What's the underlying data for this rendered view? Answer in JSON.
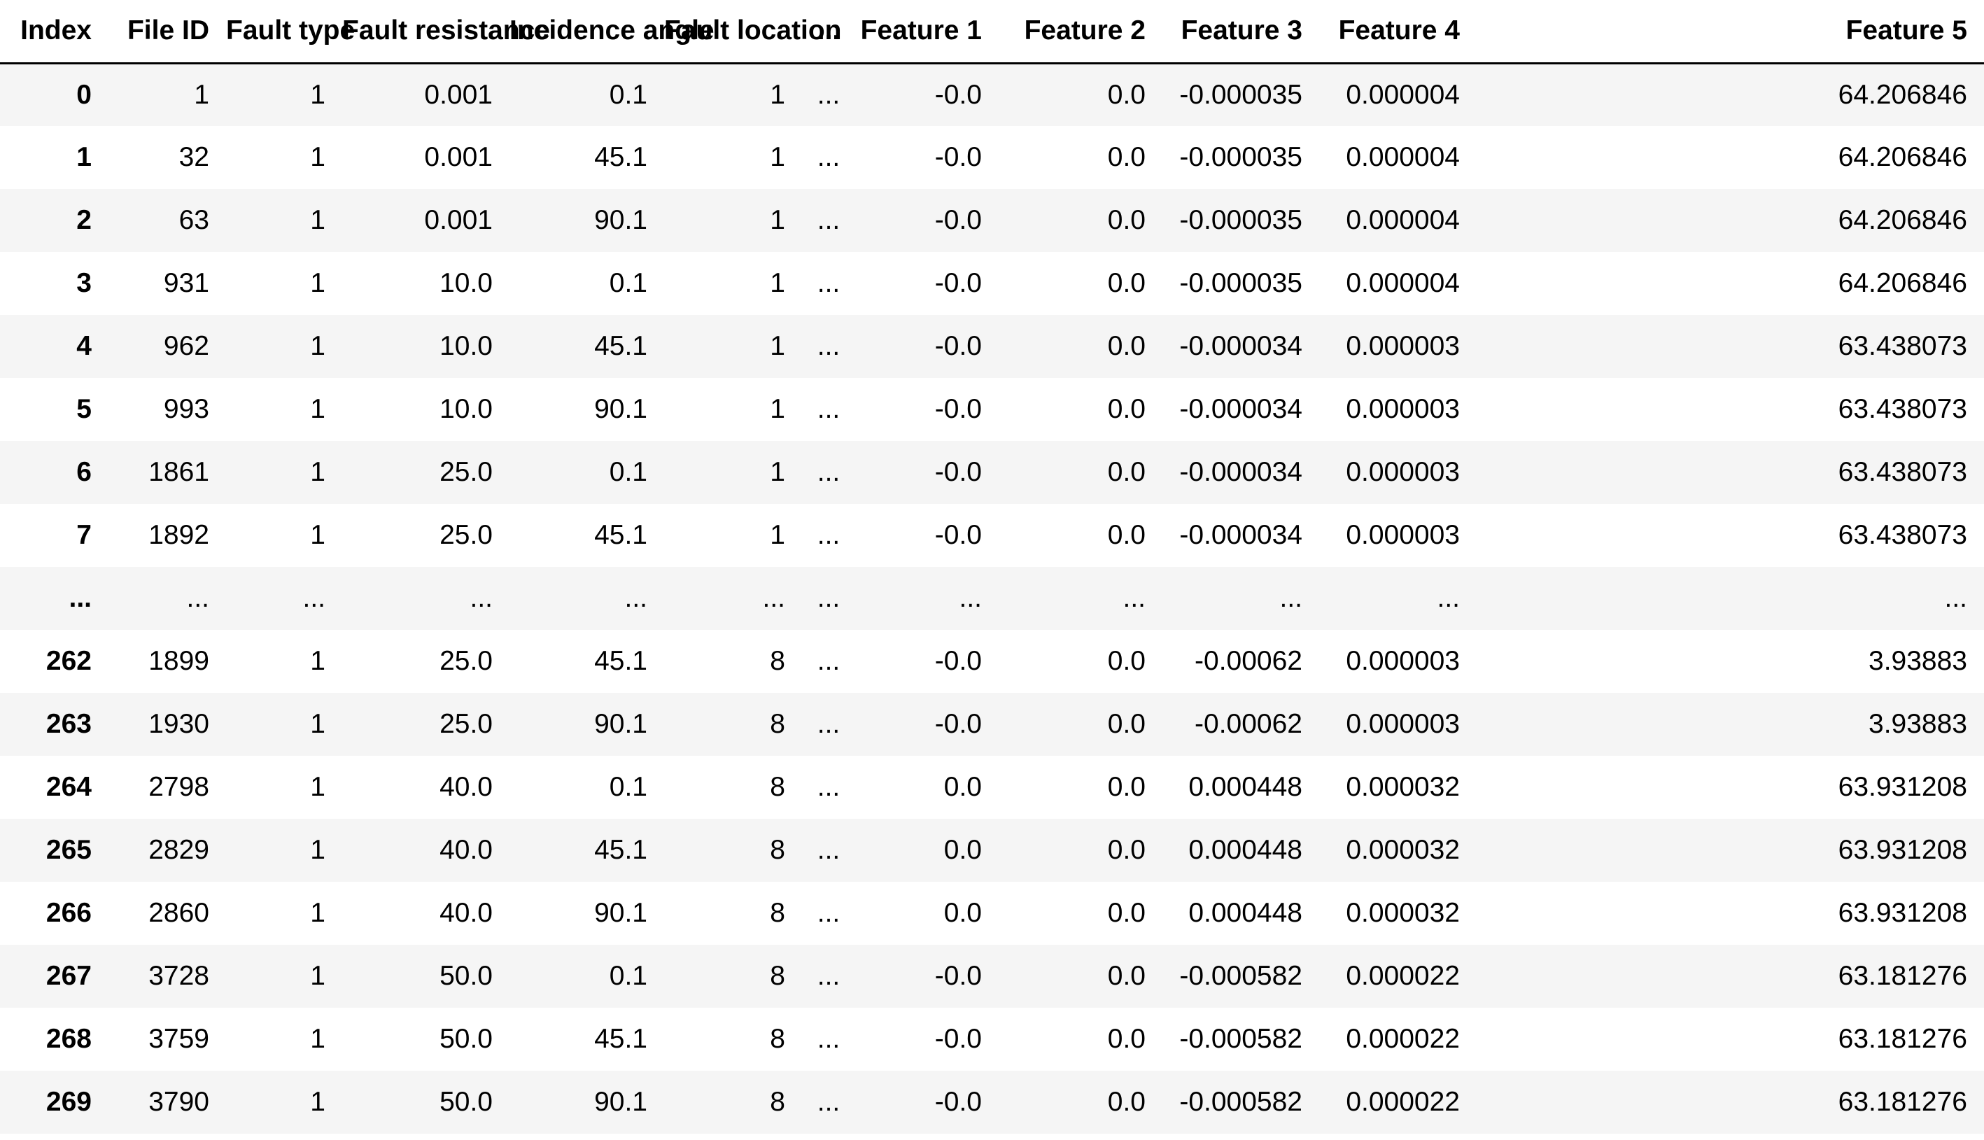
{
  "table": {
    "columns": [
      "Index",
      "File ID",
      "Fault type",
      "Fault resistance",
      "Incidence angle",
      "Fault location",
      "...",
      "Feature 1",
      "Feature 2",
      "Feature 3",
      "Feature 4",
      "Feature 5"
    ],
    "rows": [
      [
        "0",
        "1",
        "1",
        "0.001",
        "0.1",
        "1",
        "...",
        "-0.0",
        "0.0",
        "-0.000035",
        "0.000004",
        "64.206846"
      ],
      [
        "1",
        "32",
        "1",
        "0.001",
        "45.1",
        "1",
        "...",
        "-0.0",
        "0.0",
        "-0.000035",
        "0.000004",
        "64.206846"
      ],
      [
        "2",
        "63",
        "1",
        "0.001",
        "90.1",
        "1",
        "...",
        "-0.0",
        "0.0",
        "-0.000035",
        "0.000004",
        "64.206846"
      ],
      [
        "3",
        "931",
        "1",
        "10.0",
        "0.1",
        "1",
        "...",
        "-0.0",
        "0.0",
        "-0.000035",
        "0.000004",
        "64.206846"
      ],
      [
        "4",
        "962",
        "1",
        "10.0",
        "45.1",
        "1",
        "...",
        "-0.0",
        "0.0",
        "-0.000034",
        "0.000003",
        "63.438073"
      ],
      [
        "5",
        "993",
        "1",
        "10.0",
        "90.1",
        "1",
        "...",
        "-0.0",
        "0.0",
        "-0.000034",
        "0.000003",
        "63.438073"
      ],
      [
        "6",
        "1861",
        "1",
        "25.0",
        "0.1",
        "1",
        "...",
        "-0.0",
        "0.0",
        "-0.000034",
        "0.000003",
        "63.438073"
      ],
      [
        "7",
        "1892",
        "1",
        "25.0",
        "45.1",
        "1",
        "...",
        "-0.0",
        "0.0",
        "-0.000034",
        "0.000003",
        "63.438073"
      ],
      [
        "...",
        "...",
        "...",
        "...",
        "...",
        "...",
        "...",
        "...",
        "...",
        "...",
        "...",
        "..."
      ],
      [
        "262",
        "1899",
        "1",
        "25.0",
        "45.1",
        "8",
        "...",
        "-0.0",
        "0.0",
        "-0.00062",
        "0.000003",
        "3.93883"
      ],
      [
        "263",
        "1930",
        "1",
        "25.0",
        "90.1",
        "8",
        "...",
        "-0.0",
        "0.0",
        "-0.00062",
        "0.000003",
        "3.93883"
      ],
      [
        "264",
        "2798",
        "1",
        "40.0",
        "0.1",
        "8",
        "...",
        "0.0",
        "0.0",
        "0.000448",
        "0.000032",
        "63.931208"
      ],
      [
        "265",
        "2829",
        "1",
        "40.0",
        "45.1",
        "8",
        "...",
        "0.0",
        "0.0",
        "0.000448",
        "0.000032",
        "63.931208"
      ],
      [
        "266",
        "2860",
        "1",
        "40.0",
        "90.1",
        "8",
        "...",
        "0.0",
        "0.0",
        "0.000448",
        "0.000032",
        "63.931208"
      ],
      [
        "267",
        "3728",
        "1",
        "50.0",
        "0.1",
        "8",
        "...",
        "-0.0",
        "0.0",
        "-0.000582",
        "0.000022",
        "63.181276"
      ],
      [
        "268",
        "3759",
        "1",
        "50.0",
        "45.1",
        "8",
        "...",
        "-0.0",
        "0.0",
        "-0.000582",
        "0.000022",
        "63.181276"
      ],
      [
        "269",
        "3790",
        "1",
        "50.0",
        "90.1",
        "8",
        "...",
        "-0.0",
        "0.0",
        "-0.000582",
        "0.000022",
        "63.181276"
      ]
    ]
  }
}
